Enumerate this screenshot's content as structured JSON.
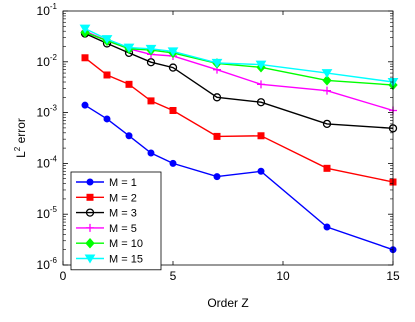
{
  "chart_data": {
    "type": "line",
    "title": "",
    "xlabel": "Order Z",
    "ylabel_base": "L",
    "ylabel_sup": "2",
    "ylabel_rest": " error",
    "xlim": [
      0,
      15
    ],
    "ylim": [
      1e-06,
      0.1
    ],
    "yscale": "log",
    "grid": false,
    "legend_position": "bottom-left",
    "x_ticks": [
      0,
      5,
      10,
      15
    ],
    "x_tick_labels": [
      "0",
      "5",
      "10",
      "15"
    ],
    "y_ticks": [
      1e-06,
      1e-05,
      0.0001,
      0.001,
      0.01,
      0.1
    ],
    "y_tick_labels": [
      {
        "base": "10",
        "exp": "-6"
      },
      {
        "base": "10",
        "exp": "-5"
      },
      {
        "base": "10",
        "exp": "-4"
      },
      {
        "base": "10",
        "exp": "-3"
      },
      {
        "base": "10",
        "exp": "-2"
      },
      {
        "base": "10",
        "exp": "-1"
      }
    ],
    "series": [
      {
        "name": "M = 1",
        "color": "#0000ff",
        "marker": "circle-filled",
        "x": [
          1,
          2,
          3,
          4,
          5,
          7,
          9,
          12,
          15
        ],
        "y": [
          0.0014,
          0.00075,
          0.00035,
          0.00016,
          0.0001,
          5.5e-05,
          7e-05,
          5.6e-06,
          2e-06
        ]
      },
      {
        "name": "M = 2",
        "color": "#ff0000",
        "marker": "square-filled",
        "x": [
          1,
          2,
          3,
          4,
          5,
          7,
          9,
          12,
          15
        ],
        "y": [
          0.012,
          0.0055,
          0.0036,
          0.0017,
          0.0011,
          0.00034,
          0.00035,
          8e-05,
          4.3e-05
        ]
      },
      {
        "name": "M = 3",
        "color": "#000000",
        "marker": "circle-open",
        "x": [
          1,
          2,
          3,
          4,
          5,
          7,
          9,
          12,
          15
        ],
        "y": [
          0.036,
          0.023,
          0.015,
          0.0098,
          0.0077,
          0.002,
          0.0016,
          0.0006,
          0.00049
        ]
      },
      {
        "name": "M = 5",
        "color": "#ff00ff",
        "marker": "plus",
        "x": [
          1,
          2,
          3,
          4,
          5,
          7,
          9,
          12,
          15
        ],
        "y": [
          0.04,
          0.026,
          0.018,
          0.014,
          0.013,
          0.007,
          0.0036,
          0.0027,
          0.0011
        ]
      },
      {
        "name": "M = 10",
        "color": "#00ff00",
        "marker": "diamond",
        "x": [
          1,
          2,
          3,
          4,
          5,
          7,
          9,
          12,
          15
        ],
        "y": [
          0.038,
          0.026,
          0.018,
          0.017,
          0.015,
          0.0093,
          0.0078,
          0.0043,
          0.0035
        ]
      },
      {
        "name": "M = 15",
        "color": "#00ffff",
        "marker": "triangle-down",
        "x": [
          1,
          2,
          3,
          4,
          5,
          7,
          9,
          12,
          15
        ],
        "y": [
          0.045,
          0.028,
          0.019,
          0.018,
          0.016,
          0.0095,
          0.0088,
          0.006,
          0.004
        ]
      }
    ]
  }
}
